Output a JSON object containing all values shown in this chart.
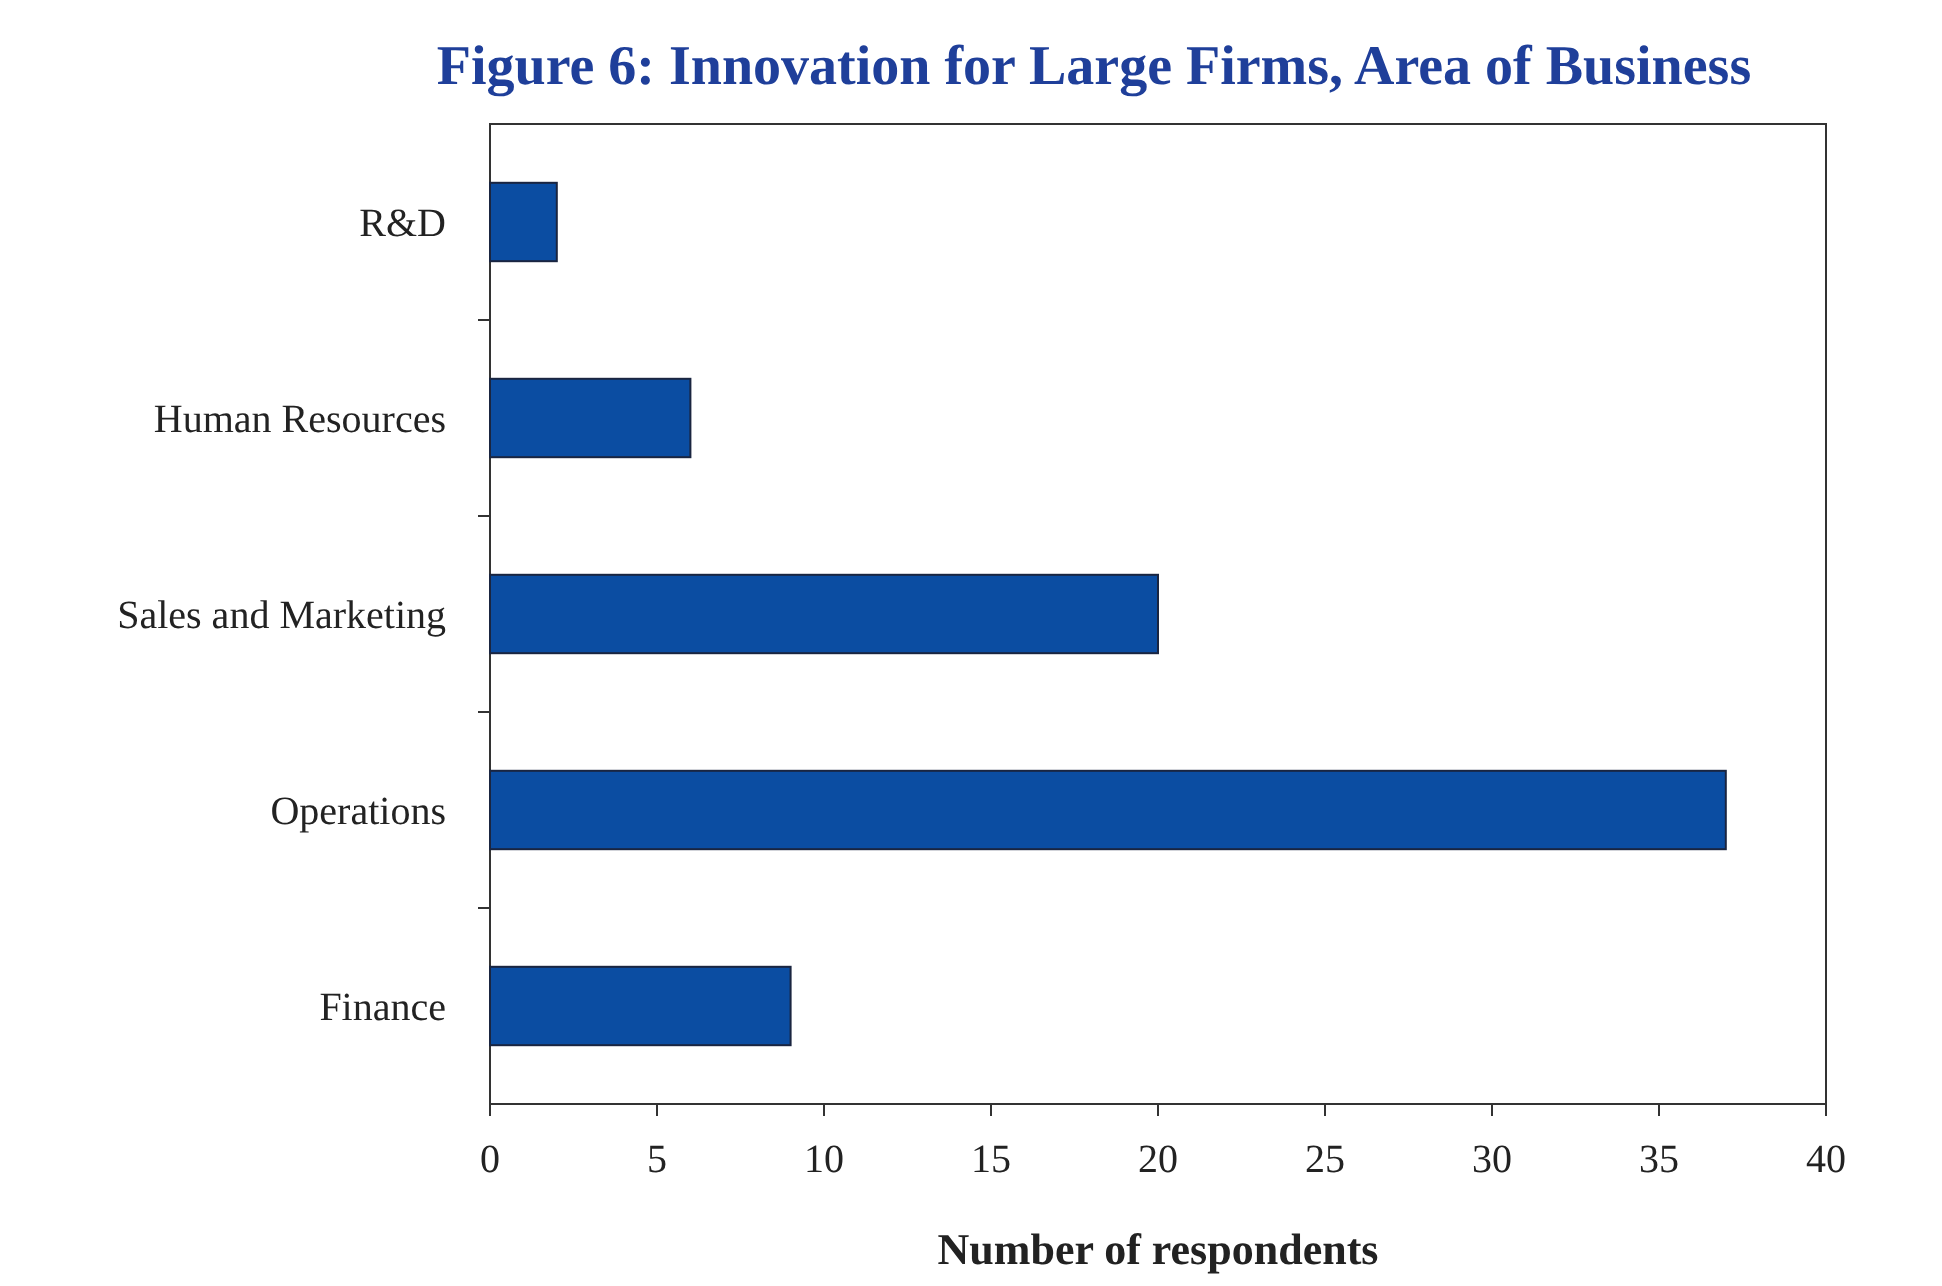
{
  "chart_data": {
    "type": "bar",
    "orientation": "horizontal",
    "title": "Figure 6: Innovation for Large Firms, Area of Business",
    "xlabel": "Number of respondents",
    "categories": [
      "R&D",
      "Human Resources",
      "Sales and Marketing",
      "Operations",
      "Finance"
    ],
    "values": [
      2,
      6,
      20,
      37,
      9
    ],
    "color": "#0b4da2",
    "xlim": [
      0,
      40
    ],
    "xticks": [
      0,
      5,
      10,
      15,
      20,
      25,
      30,
      35,
      40
    ],
    "grid": false
  }
}
